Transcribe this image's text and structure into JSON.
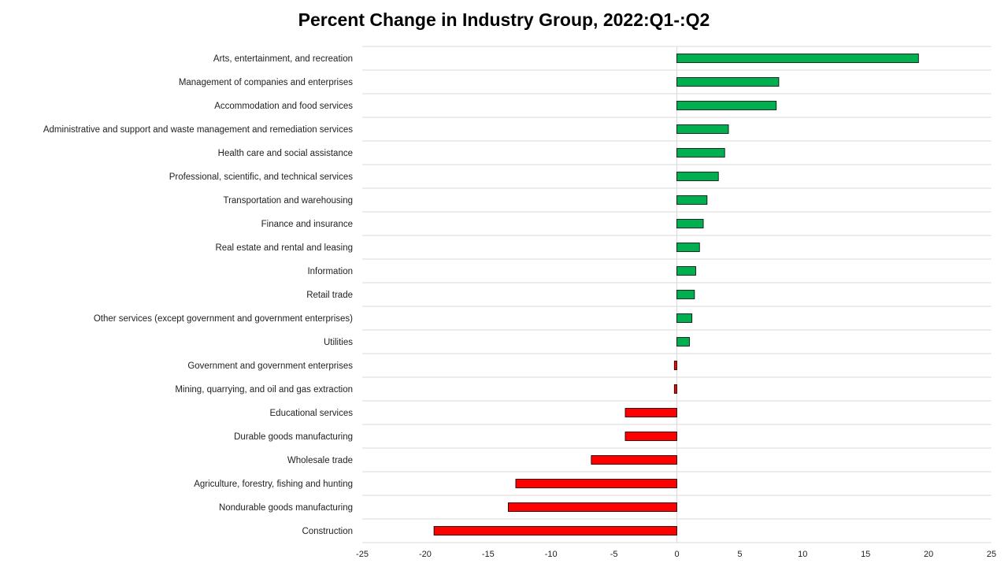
{
  "chart_data": {
    "type": "bar",
    "orientation": "horizontal",
    "title": "Percent Change in Industry Group, 2022:Q1-:Q2",
    "xlim": [
      -25,
      25
    ],
    "xticks": [
      -25,
      -20,
      -15,
      -10,
      -5,
      0,
      5,
      10,
      15,
      20,
      25
    ],
    "grid": true,
    "legend": "none",
    "colors": {
      "positive": "#00b050",
      "negative": "#ff0000"
    },
    "categories": [
      "Arts, entertainment, and recreation",
      "Management of companies and enterprises",
      "Accommodation and food services",
      "Administrative and support and waste management and remediation services",
      "Health care and social assistance",
      "Professional, scientific, and technical services",
      "Transportation and warehousing",
      "Finance and insurance",
      "Real estate and rental and leasing",
      "Information",
      "Retail trade",
      "Other services (except government and government enterprises)",
      "Utilities",
      "Government and government enterprises",
      "Mining, quarrying, and oil and gas extraction",
      "Educational services",
      "Durable goods manufacturing",
      "Wholesale trade",
      "Agriculture, forestry, fishing and hunting",
      "Nondurable goods manufacturing",
      "Construction"
    ],
    "values": [
      19.2,
      8.1,
      7.9,
      4.1,
      3.8,
      3.3,
      2.4,
      2.1,
      1.8,
      1.5,
      1.4,
      1.2,
      1.0,
      -0.2,
      -0.2,
      -4.1,
      -4.1,
      -6.8,
      -12.8,
      -13.4,
      -19.3
    ]
  }
}
